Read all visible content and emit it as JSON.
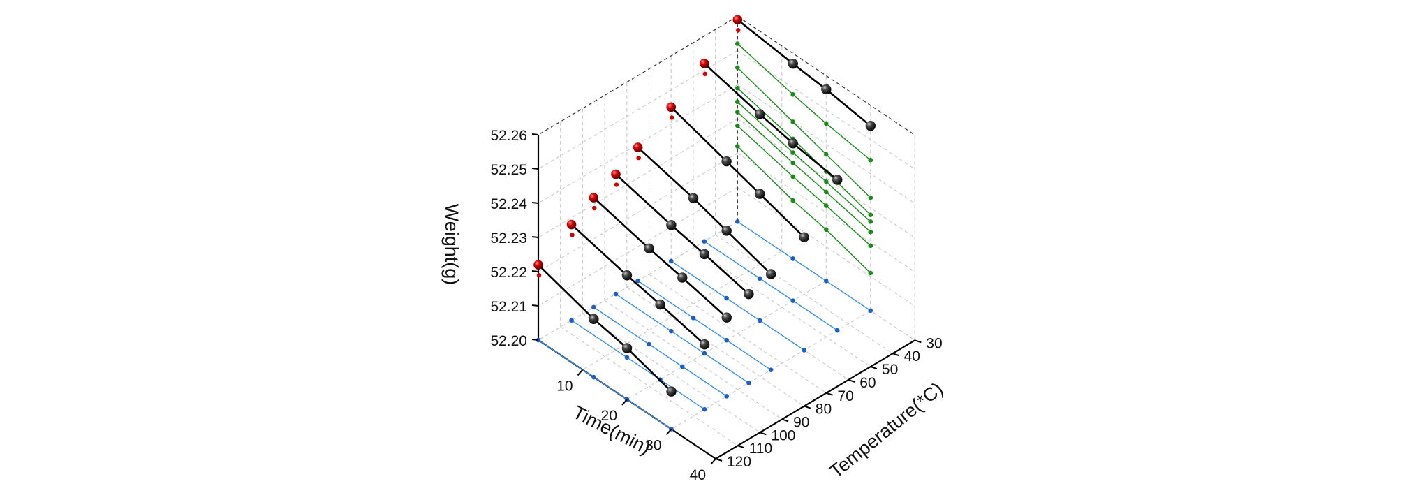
{
  "chart_data": {
    "type": "line3d",
    "title": "",
    "axes": {
      "x": {
        "label": "Time(min)",
        "range": [
          0,
          40
        ],
        "ticks": [
          10,
          20,
          30,
          40
        ]
      },
      "y": {
        "label": "Temperature(*C)",
        "range": [
          30,
          120
        ],
        "ticks": [
          30,
          40,
          50,
          60,
          70,
          80,
          90,
          100,
          110,
          120
        ]
      },
      "z": {
        "label": "Weight(g)",
        "range": [
          52.2,
          52.26
        ],
        "ticks": [
          "52.20",
          "52.21",
          "52.22",
          "52.23",
          "52.24",
          "52.25",
          "52.26"
        ]
      }
    },
    "grid": true,
    "legend": "none",
    "series_style": {
      "main": {
        "line": "#000000",
        "marker": "black-sphere",
        "first_marker": "#d40000"
      },
      "time_weight_projection": {
        "color": "#1f5fc4"
      },
      "temp_weight_projection": {
        "color": "#1a8a1a"
      }
    },
    "series": [
      {
        "temperature": 30,
        "time": [
          0,
          12.5,
          20,
          30
        ],
        "weight": [
          52.259,
          52.257,
          52.256,
          52.254
        ]
      },
      {
        "temperature": 45,
        "time": [
          0,
          12.5,
          20,
          30
        ],
        "weight": [
          52.252,
          52.248,
          52.246,
          52.244
        ]
      },
      {
        "temperature": 60,
        "time": [
          0,
          12.5,
          20,
          30
        ],
        "weight": [
          52.245,
          52.24,
          52.237,
          52.233
        ]
      },
      {
        "temperature": 75,
        "time": [
          0,
          12.5,
          20,
          30
        ],
        "weight": [
          52.239,
          52.235,
          52.232,
          52.228
        ]
      },
      {
        "temperature": 85,
        "time": [
          0,
          12.5,
          20,
          30
        ],
        "weight": [
          52.235,
          52.231,
          52.229,
          52.226
        ]
      },
      {
        "temperature": 95,
        "time": [
          0,
          12.5,
          20,
          30
        ],
        "weight": [
          52.232,
          52.228,
          52.226,
          52.223
        ]
      },
      {
        "temperature": 105,
        "time": [
          0,
          12.5,
          20,
          30
        ],
        "weight": [
          52.228,
          52.224,
          52.222,
          52.219
        ]
      },
      {
        "temperature": 120,
        "time": [
          0,
          12.5,
          20,
          30
        ],
        "weight": [
          52.222,
          52.217,
          52.215,
          52.211
        ]
      }
    ]
  }
}
